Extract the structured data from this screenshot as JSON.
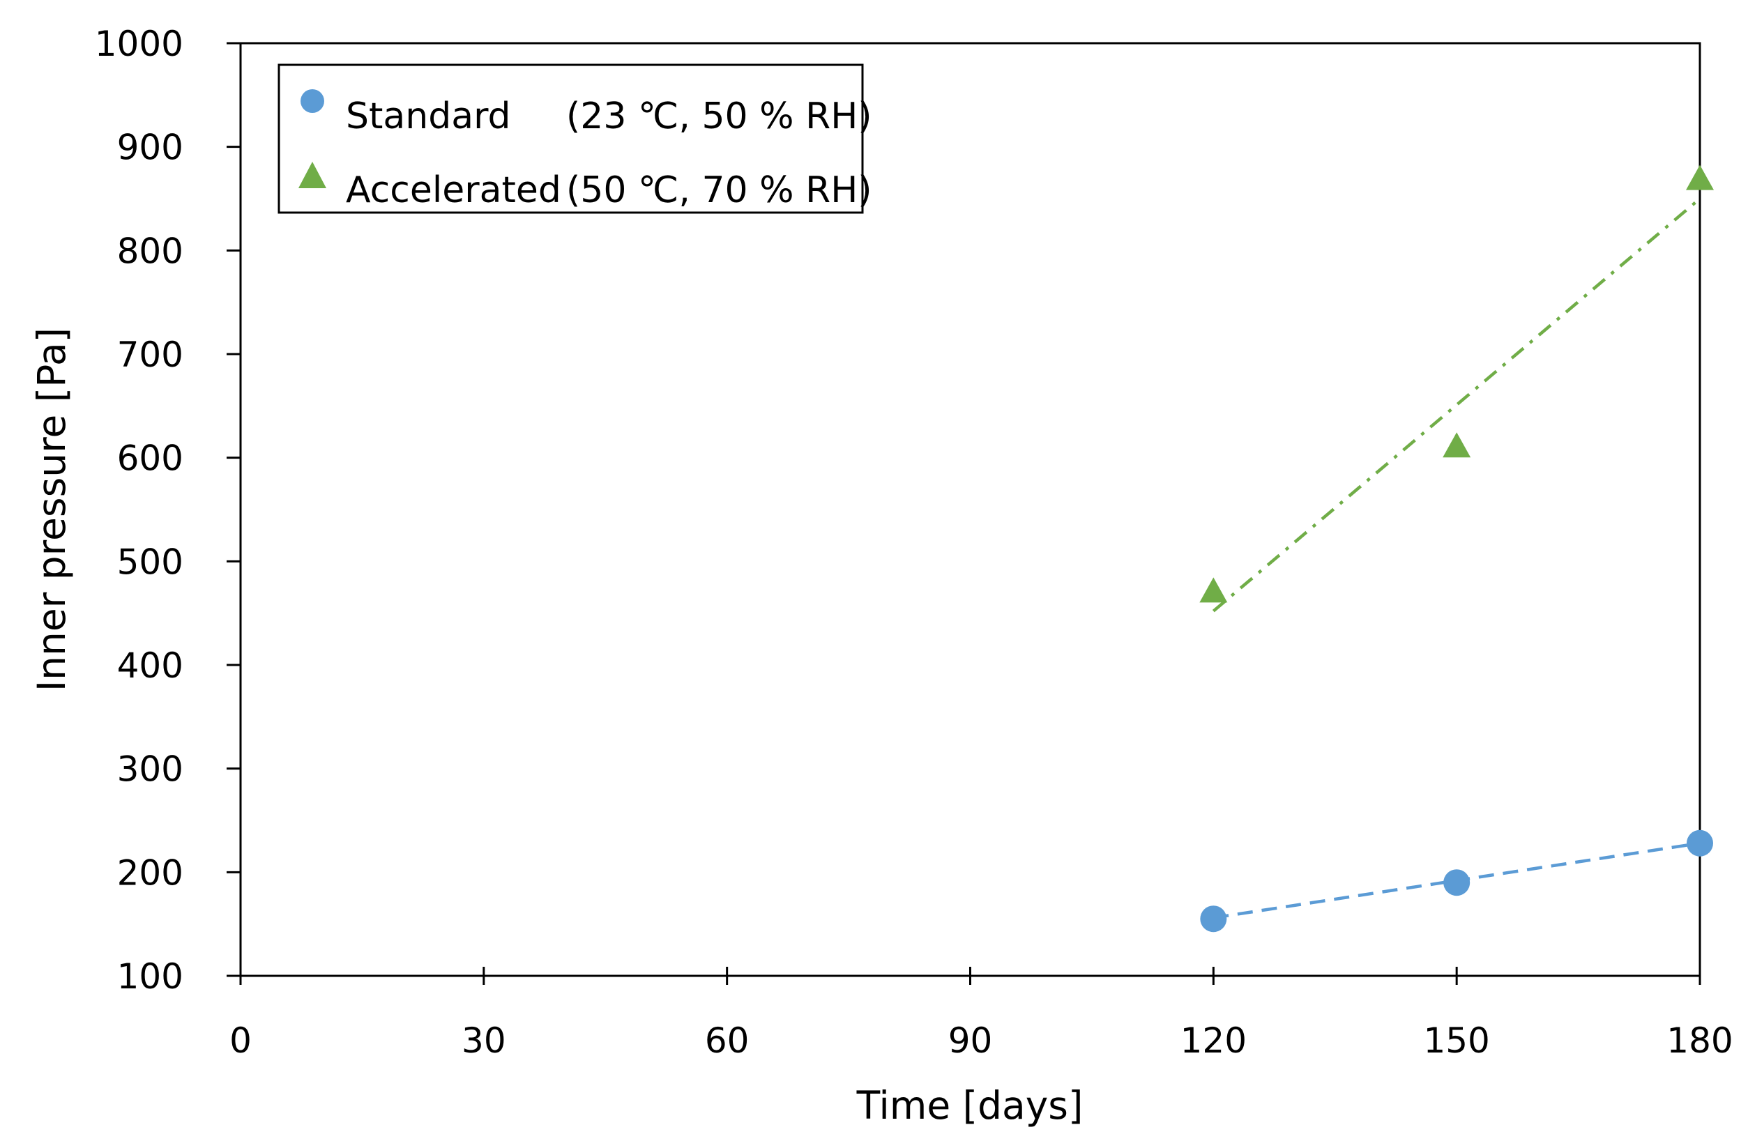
{
  "chart_data": {
    "type": "scatter",
    "title": "",
    "xlabel": "Time [days]",
    "ylabel": "Inner pressure [Pa]",
    "xlim": [
      0,
      180
    ],
    "ylim": [
      100,
      1000
    ],
    "xticks": [
      0,
      30,
      60,
      90,
      120,
      150,
      180
    ],
    "yticks": [
      100,
      200,
      300,
      400,
      500,
      600,
      700,
      800,
      900,
      1000
    ],
    "xtick_labels": [
      "0",
      "30",
      "60",
      "90",
      "120",
      "150",
      "180"
    ],
    "ytick_labels": [
      "100",
      "200",
      "300",
      "400",
      "500",
      "600",
      "700",
      "800",
      "900",
      "1000"
    ],
    "grid": false,
    "legend_position": "top-left",
    "series": [
      {
        "name": "Standard",
        "condition": "(23 ℃, 50 % RH)",
        "marker": "circle",
        "color": "#5b9bd5",
        "x": [
          120,
          150,
          180
        ],
        "y": [
          155,
          190,
          228
        ],
        "trendline": {
          "style": "dashed",
          "x": [
            120,
            180
          ],
          "y": [
            156,
            228
          ]
        }
      },
      {
        "name": "Accelerated",
        "condition": "(50 ℃, 70 % RH)",
        "marker": "triangle",
        "color": "#70ad47",
        "x": [
          120,
          150,
          180
        ],
        "y": [
          470,
          610,
          868
        ],
        "trendline": {
          "style": "dash-dot",
          "x": [
            120,
            180
          ],
          "y": [
            452,
            850
          ]
        }
      }
    ]
  }
}
